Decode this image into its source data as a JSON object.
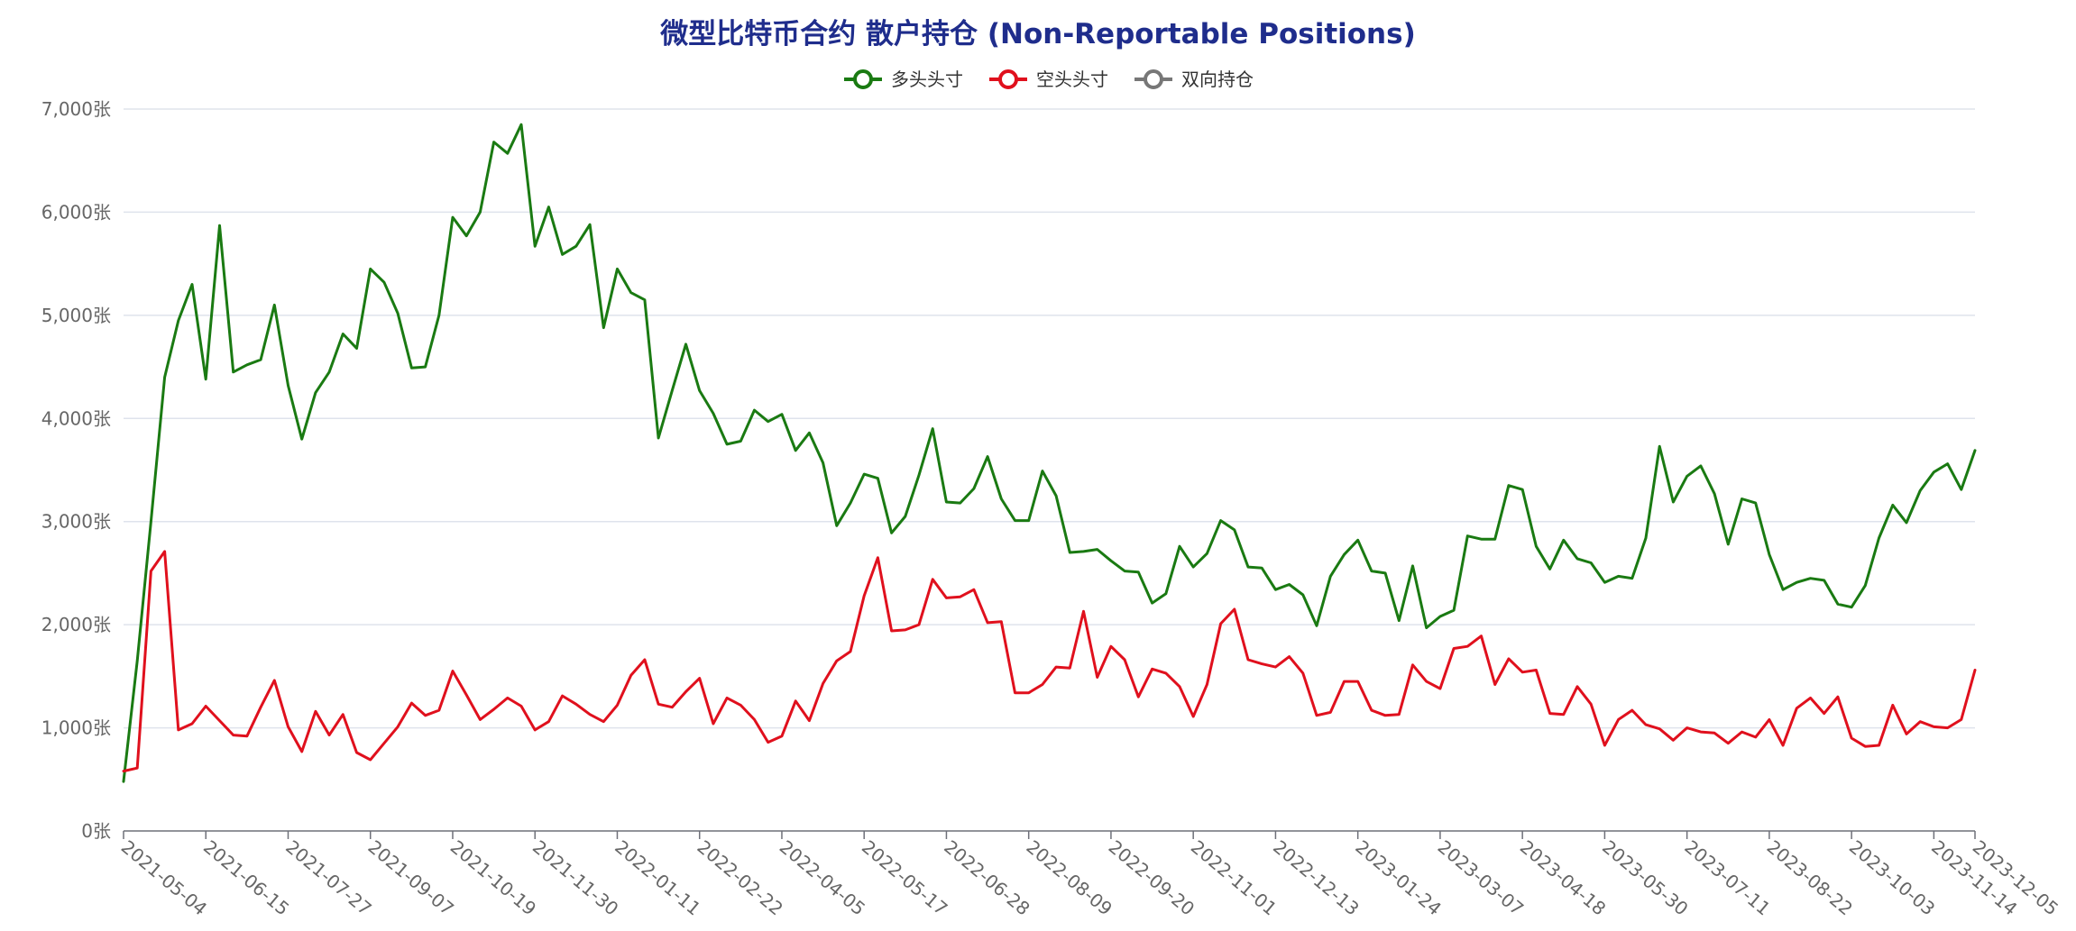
{
  "chart_data": {
    "type": "line",
    "title": "微型比特币合约 散户持仓 (Non-Reportable Positions)",
    "xlabel": "",
    "ylabel": "",
    "ylim": [
      0,
      7000
    ],
    "y_ticks": [
      0,
      1000,
      2000,
      3000,
      4000,
      5000,
      6000,
      7000
    ],
    "y_tick_labels": [
      "0张",
      "1,000张",
      "2,000张",
      "3,000张",
      "4,000张",
      "5,000张",
      "6,000张",
      "7,000张"
    ],
    "x_tick_labels": [
      "2021-05-04",
      "2021-06-15",
      "2021-07-27",
      "2021-09-07",
      "2021-10-19",
      "2021-11-30",
      "2022-01-11",
      "2022-02-22",
      "2022-04-05",
      "2022-05-17",
      "2022-06-28",
      "2022-08-09",
      "2022-09-20",
      "2022-11-01",
      "2022-12-13",
      "2023-01-24",
      "2023-03-07",
      "2023-04-18",
      "2023-05-30",
      "2023-07-11",
      "2023-08-22",
      "2023-10-03",
      "2023-11-14",
      "2023-12-05"
    ],
    "x_start": "2021-05-04",
    "x_interval_days": 7,
    "grid": true,
    "legend_position": "top-center",
    "series": [
      {
        "name": "多头头寸",
        "color": "#1a7a12",
        "values": [
          480,
          1650,
          3000,
          4400,
          4950,
          5300,
          4380,
          5870,
          4450,
          4520,
          4570,
          5100,
          4320,
          3800,
          4250,
          4450,
          4820,
          4680,
          5450,
          5320,
          5020,
          4490,
          4500,
          5000,
          5950,
          5770,
          6000,
          6680,
          6570,
          6850,
          5670,
          6050,
          5590,
          5670,
          5880,
          4880,
          5450,
          5220,
          5150,
          3810,
          4270,
          4720,
          4270,
          4050,
          3750,
          3780,
          4080,
          3970,
          4040,
          3690,
          3860,
          3570,
          2960,
          3180,
          3460,
          3420,
          2890,
          3050,
          3450,
          3900,
          3190,
          3180,
          3320,
          3630,
          3220,
          3010,
          3010,
          3490,
          3250,
          2700,
          2710,
          2730,
          2620,
          2520,
          2510,
          2210,
          2300,
          2760,
          2560,
          2690,
          3010,
          2920,
          2560,
          2550,
          2340,
          2390,
          2290,
          1990,
          2470,
          2680,
          2820,
          2520,
          2500,
          2040,
          2570,
          1970,
          2080,
          2140,
          2860,
          2830,
          2830,
          3350,
          3310,
          2760,
          2540,
          2820,
          2640,
          2600,
          2410,
          2470,
          2450,
          2840,
          3730,
          3190,
          3440,
          3540,
          3270,
          2780,
          3220,
          3180,
          2680,
          2340,
          2410,
          2450,
          2430,
          2200,
          2170,
          2380,
          2840,
          3160,
          2990,
          3300,
          3480,
          3560,
          3310,
          3690
        ]
      },
      {
        "name": "空头头寸",
        "color": "#e0101d",
        "values": [
          580,
          610,
          2520,
          2710,
          980,
          1040,
          1210,
          1070,
          930,
          920,
          1200,
          1460,
          1010,
          770,
          1160,
          930,
          1130,
          760,
          690,
          850,
          1010,
          1240,
          1120,
          1170,
          1550,
          1320,
          1080,
          1180,
          1290,
          1210,
          980,
          1060,
          1310,
          1230,
          1130,
          1060,
          1220,
          1510,
          1660,
          1230,
          1200,
          1350,
          1480,
          1040,
          1290,
          1220,
          1080,
          860,
          920,
          1260,
          1070,
          1430,
          1650,
          1740,
          2280,
          2650,
          1940,
          1950,
          2000,
          2440,
          2260,
          2270,
          2340,
          2020,
          2030,
          1340,
          1340,
          1420,
          1590,
          1580,
          2130,
          1490,
          1790,
          1660,
          1300,
          1570,
          1530,
          1400,
          1110,
          1420,
          2010,
          2150,
          1660,
          1620,
          1590,
          1690,
          1530,
          1120,
          1150,
          1450,
          1450,
          1170,
          1120,
          1130,
          1610,
          1450,
          1380,
          1770,
          1790,
          1890,
          1420,
          1670,
          1540,
          1560,
          1140,
          1130,
          1400,
          1230,
          830,
          1080,
          1170,
          1030,
          990,
          880,
          1000,
          960,
          950,
          850,
          960,
          910,
          1080,
          830,
          1190,
          1290,
          1140,
          1300,
          900,
          820,
          830,
          1220,
          940,
          1060,
          1010,
          1000,
          1080,
          1560
        ]
      },
      {
        "name": "双向持仓",
        "color": "#777777",
        "values": []
      }
    ]
  }
}
